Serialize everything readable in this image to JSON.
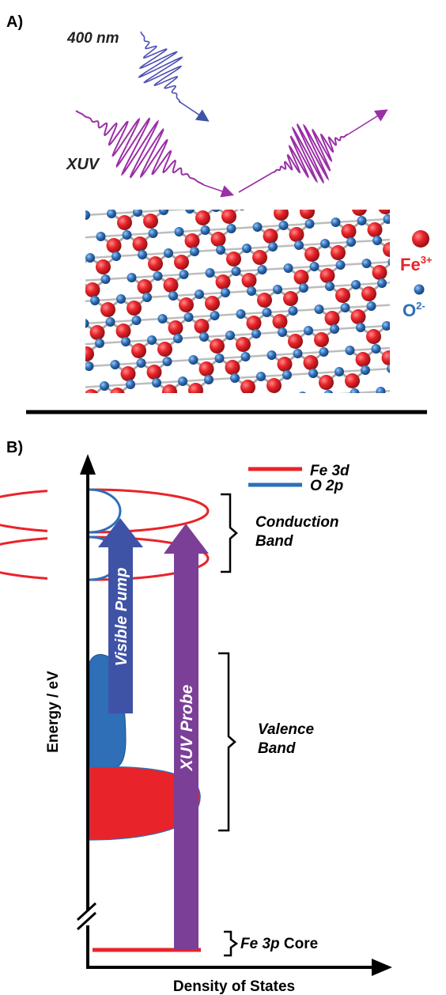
{
  "panel_a": {
    "label": "A)",
    "pump_label": "400 nm",
    "probe_label": "XUV",
    "legend": {
      "fe": {
        "symbol": "Fe",
        "charge": "3+"
      },
      "o": {
        "symbol": "O",
        "charge": "2-"
      }
    }
  },
  "panel_b": {
    "label": "B)",
    "y_axis_label": "Energy / eV",
    "x_axis_label": "Density of States",
    "legend": {
      "fe3d": "Fe 3d",
      "o2p": "O 2p"
    },
    "conduction_band": [
      "Conduction",
      "Band"
    ],
    "valence_band": [
      "Valence",
      "Band"
    ],
    "core_label": {
      "italic": "Fe 3p",
      "plain": " Core"
    },
    "visible_pump": "Visible Pump",
    "xuv_probe": "XUV Probe"
  },
  "colors": {
    "fe": "#e8242a",
    "o": "#2e6fb8",
    "blue_pulse": "#4a4fb4",
    "xuv": "#9a2fa6",
    "xuv_arrow": "#7b3f98",
    "pump_arrow": "#3f53a6"
  }
}
